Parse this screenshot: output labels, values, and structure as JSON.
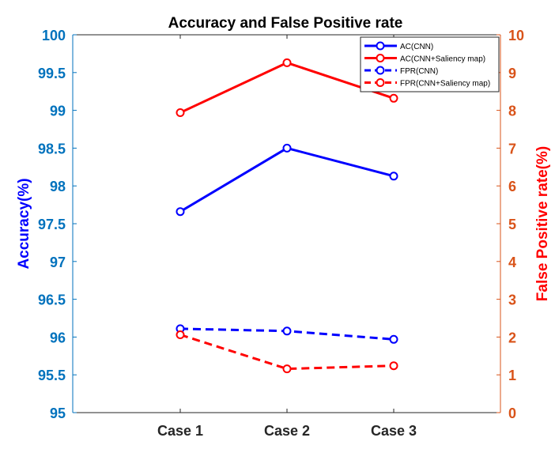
{
  "chart_data": {
    "type": "line",
    "title": "Accuracy and False Positive rate",
    "categories": [
      "Case 1",
      "Case 2",
      "Case 3"
    ],
    "y_left": {
      "label": "Accuracy(%)",
      "range": [
        95,
        100
      ],
      "ticks": [
        "95",
        "95.5",
        "96",
        "96.5",
        "97",
        "97.5",
        "98",
        "98.5",
        "99",
        "99.5",
        "100"
      ],
      "tick_values": [
        95,
        95.5,
        96,
        96.5,
        97,
        97.5,
        98,
        98.5,
        99,
        99.5,
        100
      ]
    },
    "y_right": {
      "label": "False Positive rate(%)",
      "range": [
        0,
        10
      ],
      "ticks": [
        "0",
        "1",
        "2",
        "3",
        "4",
        "5",
        "6",
        "7",
        "8",
        "9",
        "10"
      ],
      "tick_values": [
        0,
        1,
        2,
        3,
        4,
        5,
        6,
        7,
        8,
        9,
        10
      ]
    },
    "series": [
      {
        "name": "AC(CNN)",
        "axis": "left",
        "color": "#0000ff",
        "dash": false,
        "values": [
          97.66,
          98.5,
          98.13
        ]
      },
      {
        "name": "AC(CNN+Saliency map)",
        "axis": "left",
        "color": "#ff0000",
        "dash": false,
        "values": [
          98.97,
          99.63,
          99.16
        ]
      },
      {
        "name": "FPR(CNN)",
        "axis": "right",
        "color": "#0000ff",
        "dash": true,
        "values": [
          2.22,
          2.16,
          1.94
        ]
      },
      {
        "name": "FPR(CNN+Saliency map)",
        "axis": "right",
        "color": "#ff0000",
        "dash": true,
        "values": [
          2.06,
          1.16,
          1.24
        ]
      }
    ],
    "legend_position": "top-right",
    "grid": false,
    "colors": {
      "left_axis": "#0072bd",
      "right_axis": "#d95319",
      "left_label": "#0000ff",
      "right_label": "#ff0000"
    }
  }
}
